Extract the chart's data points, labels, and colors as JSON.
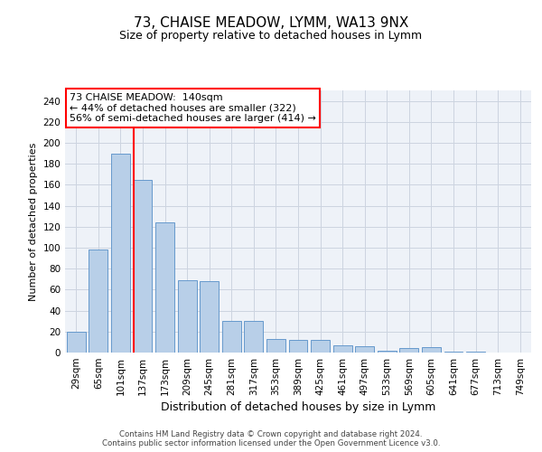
{
  "title": "73, CHAISE MEADOW, LYMM, WA13 9NX",
  "subtitle": "Size of property relative to detached houses in Lymm",
  "xlabel": "Distribution of detached houses by size in Lymm",
  "ylabel": "Number of detached properties",
  "footer_line1": "Contains HM Land Registry data © Crown copyright and database right 2024.",
  "footer_line2": "Contains public sector information licensed under the Open Government Licence v3.0.",
  "bin_labels": [
    "29sqm",
    "65sqm",
    "101sqm",
    "137sqm",
    "173sqm",
    "209sqm",
    "245sqm",
    "281sqm",
    "317sqm",
    "353sqm",
    "389sqm",
    "425sqm",
    "461sqm",
    "497sqm",
    "533sqm",
    "569sqm",
    "605sqm",
    "641sqm",
    "677sqm",
    "713sqm",
    "749sqm"
  ],
  "bar_values": [
    20,
    98,
    190,
    165,
    124,
    69,
    68,
    30,
    30,
    13,
    12,
    12,
    7,
    6,
    2,
    4,
    5,
    1,
    1,
    0,
    0
  ],
  "bar_color": "#b8cfe8",
  "bar_edge_color": "#6699cc",
  "vline_x_index": 3,
  "annotation_title": "73 CHAISE MEADOW:  140sqm",
  "annotation_line1": "← 44% of detached houses are smaller (322)",
  "annotation_line2": "56% of semi-detached houses are larger (414) →",
  "annotation_box_color": "white",
  "annotation_box_edge_color": "red",
  "vline_color": "red",
  "ylim": [
    0,
    250
  ],
  "yticks": [
    0,
    20,
    40,
    60,
    80,
    100,
    120,
    140,
    160,
    180,
    200,
    220,
    240
  ],
  "bg_color": "#eef2f8",
  "grid_color": "#ccd4e0",
  "title_fontsize": 11,
  "subtitle_fontsize": 9,
  "ylabel_fontsize": 8,
  "xlabel_fontsize": 9,
  "tick_fontsize": 7.5,
  "annotation_fontsize": 8
}
